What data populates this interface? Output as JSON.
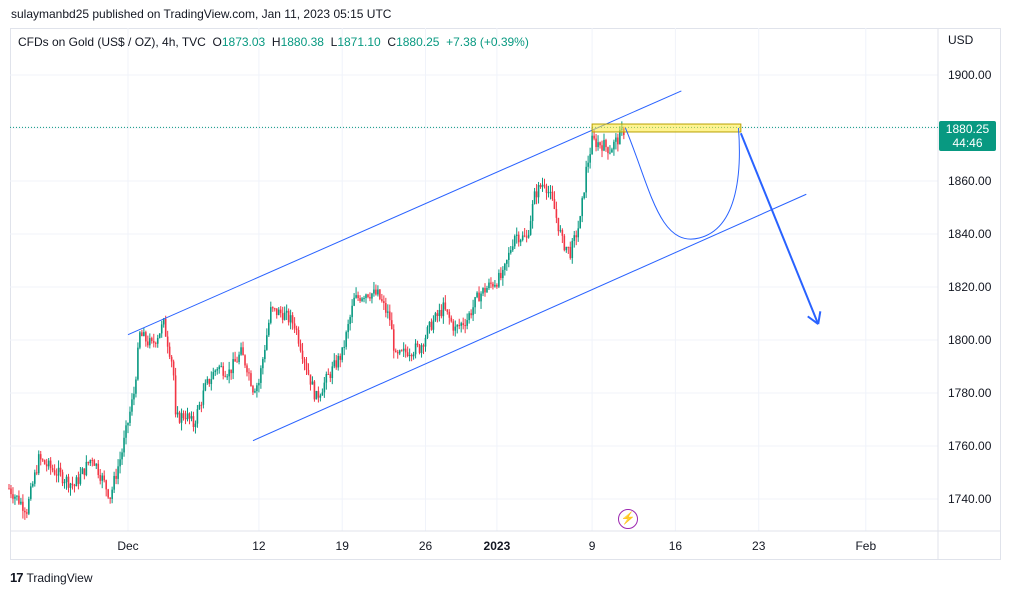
{
  "header": {
    "published_line": "sulaymanbd25 published on TradingView.com, Jan 11, 2023 05:15 UTC"
  },
  "legend": {
    "symbol": "CFDs on Gold (US$ / OZ), 4h, TVC",
    "open_label": "O",
    "open": "1873.03",
    "high_label": "H",
    "high": "1880.38",
    "low_label": "L",
    "low": "1871.10",
    "close_label": "C",
    "close": "1880.25",
    "change": "+7.38 (+0.39%)"
  },
  "price_axis": {
    "currency": "USD",
    "current_price": "1880.25",
    "countdown": "44:46"
  },
  "footer": {
    "brand": "TradingView"
  },
  "colors": {
    "up": "#089981",
    "down": "#f23645",
    "drawing": "#2962ff",
    "highlight": "#ffeb3b",
    "event": "#9c27b0"
  },
  "chart_data": {
    "type": "candlestick",
    "title": "CFDs on Gold (US$ / OZ), 4h, TVC",
    "ylim": [
      1728,
      1913
    ],
    "yticks": [
      1740,
      1760,
      1780,
      1800,
      1820,
      1840,
      1860,
      1880,
      1900
    ],
    "ytick_labels": [
      "1740.00",
      "1760.00",
      "1780.00",
      "1800.00",
      "1820.00",
      "1840.00",
      "1860.00",
      "1880.00",
      "1900.00"
    ],
    "xticks": [
      {
        "label": "Dec",
        "day": 0
      },
      {
        "label": "12",
        "day": 11
      },
      {
        "label": "19",
        "day": 18
      },
      {
        "label": "26",
        "day": 25
      },
      {
        "label": "2023",
        "day": 31
      },
      {
        "label": "9",
        "day": 39
      },
      {
        "label": "16",
        "day": 46
      },
      {
        "label": "23",
        "day": 53
      },
      {
        "label": "Feb",
        "day": 62
      }
    ],
    "grid": true,
    "current_price": 1880.25,
    "price_path": [
      {
        "day": -10,
        "price": 1744
      },
      {
        "day": -8.5,
        "price": 1736
      },
      {
        "day": -7.5,
        "price": 1755
      },
      {
        "day": -6,
        "price": 1750
      },
      {
        "day": -4.5,
        "price": 1745
      },
      {
        "day": -3,
        "price": 1756
      },
      {
        "day": -1.5,
        "price": 1741
      },
      {
        "day": -0.5,
        "price": 1758
      },
      {
        "day": 0.5,
        "price": 1780
      },
      {
        "day": 1,
        "price": 1802
      },
      {
        "day": 2,
        "price": 1798
      },
      {
        "day": 3,
        "price": 1806
      },
      {
        "day": 3.8,
        "price": 1790
      },
      {
        "day": 4,
        "price": 1770
      },
      {
        "day": 4.8,
        "price": 1772
      },
      {
        "day": 5.5,
        "price": 1768
      },
      {
        "day": 6.5,
        "price": 1782
      },
      {
        "day": 7.5,
        "price": 1790
      },
      {
        "day": 8.5,
        "price": 1788
      },
      {
        "day": 9.5,
        "price": 1795
      },
      {
        "day": 10,
        "price": 1790
      },
      {
        "day": 10.5,
        "price": 1782
      },
      {
        "day": 11,
        "price": 1784
      },
      {
        "day": 12,
        "price": 1811
      },
      {
        "day": 13,
        "price": 1810
      },
      {
        "day": 14,
        "price": 1806
      },
      {
        "day": 15,
        "price": 1790
      },
      {
        "day": 15.8,
        "price": 1778
      },
      {
        "day": 16.8,
        "price": 1786
      },
      {
        "day": 18,
        "price": 1795
      },
      {
        "day": 19,
        "price": 1815
      },
      {
        "day": 20,
        "price": 1818
      },
      {
        "day": 21,
        "price": 1817
      },
      {
        "day": 22,
        "price": 1808
      },
      {
        "day": 22.5,
        "price": 1793
      },
      {
        "day": 23.5,
        "price": 1796
      },
      {
        "day": 24.5,
        "price": 1797
      },
      {
        "day": 25.5,
        "price": 1806
      },
      {
        "day": 26.5,
        "price": 1812
      },
      {
        "day": 27.5,
        "price": 1804
      },
      {
        "day": 28.5,
        "price": 1808
      },
      {
        "day": 29.5,
        "price": 1817
      },
      {
        "day": 30.5,
        "price": 1821
      },
      {
        "day": 31.5,
        "price": 1824
      },
      {
        "day": 32.5,
        "price": 1840
      },
      {
        "day": 33.5,
        "price": 1838
      },
      {
        "day": 34.2,
        "price": 1855
      },
      {
        "day": 35,
        "price": 1860
      },
      {
        "day": 35.8,
        "price": 1850
      },
      {
        "day": 36.5,
        "price": 1837
      },
      {
        "day": 37.2,
        "price": 1833
      },
      {
        "day": 38,
        "price": 1845
      },
      {
        "day": 38.5,
        "price": 1864
      },
      {
        "day": 39,
        "price": 1875
      },
      {
        "day": 39.8,
        "price": 1874
      },
      {
        "day": 40.5,
        "price": 1872
      },
      {
        "day": 41.2,
        "price": 1876
      },
      {
        "day": 41.8,
        "price": 1880
      }
    ]
  },
  "annotations": {
    "channel_upper": [
      {
        "day": 0,
        "price": 1802
      },
      {
        "day": 46.5,
        "price": 1894
      }
    ],
    "channel_lower": [
      {
        "day": 10.5,
        "price": 1762
      },
      {
        "day": 57,
        "price": 1855
      }
    ],
    "resistance_zone": {
      "day_start": 39,
      "day_end": 51.5,
      "price_low": 1878.5,
      "price_high": 1881.5
    },
    "projected_curve": [
      {
        "day": 41.8,
        "price": 1880
      },
      {
        "day": 48,
        "price": 1838.5
      },
      {
        "day": 51.3,
        "price": 1880
      }
    ],
    "projected_arrow": [
      {
        "day": 51.5,
        "price": 1878
      },
      {
        "day": 58,
        "price": 1806
      }
    ]
  }
}
